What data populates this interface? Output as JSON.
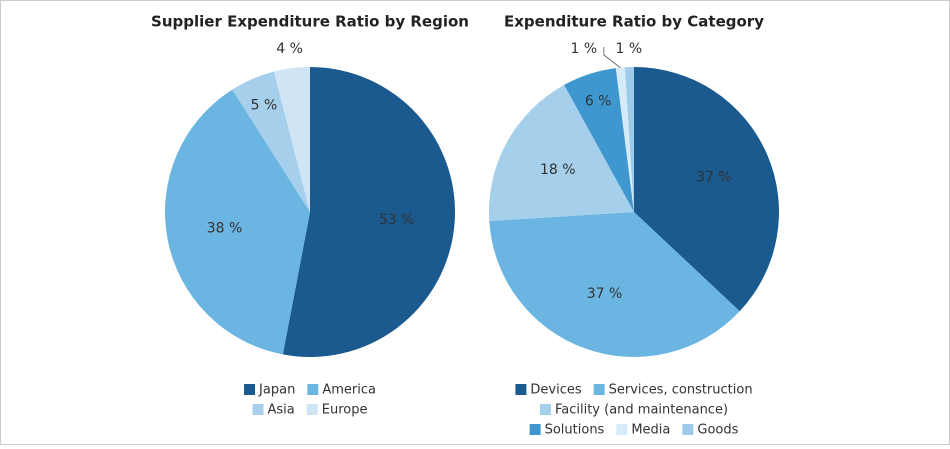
{
  "chart_data": [
    {
      "type": "pie",
      "title": "Supplier Expenditure Ratio by Region",
      "categories": [
        "Japan",
        "America",
        "Asia",
        "Europe"
      ],
      "values": [
        53,
        38,
        5,
        4
      ],
      "value_labels": [
        "53 %",
        "38 %",
        "5 %",
        "4 %"
      ],
      "colors": [
        "#1a5a8f",
        "#6bb5e2",
        "#a5cfeb",
        "#cfe5f4"
      ]
    },
    {
      "type": "pie",
      "title": "Expenditure Ratio by Category",
      "categories": [
        "Devices",
        "Services, construction",
        "Facility (and maintenance)",
        "Solutions",
        "Media",
        "Goods"
      ],
      "values": [
        37,
        37,
        18,
        6,
        1,
        1
      ],
      "value_labels": [
        "37 %",
        "37 %",
        "18 %",
        "6 %",
        "1 %",
        "1 %"
      ],
      "colors": [
        "#1a5a8f",
        "#6bb5e2",
        "#a5cfeb",
        "#3f97cf",
        "#d6ebf8",
        "#9fcbeb"
      ]
    }
  ]
}
